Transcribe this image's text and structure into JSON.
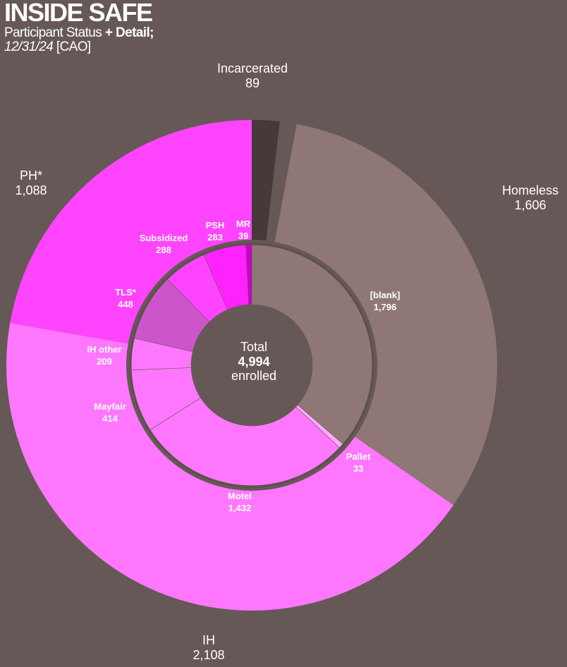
{
  "header": {
    "title": "INSIDE SAFE",
    "subtitle_plain": "Participant Status",
    "subtitle_bold": "+ Detail;",
    "date": "12/31/24",
    "source": "[CAO]"
  },
  "chart_data": {
    "type": "pie",
    "subtype": "nested-donut",
    "total_label": "Total",
    "total_value": "4,994",
    "total_unit": "enrolled",
    "outer": [
      {
        "label": "Incarcerated",
        "value": 89,
        "display": "89",
        "color": "#46393a"
      },
      {
        "label": "Homeless",
        "value": 1606,
        "display": "1,606",
        "color": "#8f7776"
      },
      {
        "label": "IH",
        "value": 2108,
        "display": "2,108",
        "color": "#ff77ff"
      },
      {
        "label": "PH*",
        "value": 1088,
        "display": "1,088",
        "color": "#ff44ff"
      }
    ],
    "inner": [
      {
        "label": "[blank]",
        "value": 1796,
        "display": "1,796",
        "color": "#8f7776"
      },
      {
        "label": "Pallet",
        "value": 33,
        "display": "33",
        "color": "#ffaaff"
      },
      {
        "label": "Motel",
        "value": 1432,
        "display": "1,432",
        "color": "#ff77ff"
      },
      {
        "label": "Mayfair",
        "value": 414,
        "display": "414",
        "color": "#ff77ff"
      },
      {
        "label": "IH other",
        "value": 209,
        "display": "209",
        "color": "#ff77ff"
      },
      {
        "label": "TLS*",
        "value": 448,
        "display": "448",
        "color": "#cc55cc"
      },
      {
        "label": "Subsidized",
        "value": 288,
        "display": "288",
        "color": "#ff44ff"
      },
      {
        "label": "PSH",
        "value": 283,
        "display": "283",
        "color": "#ff22ff"
      },
      {
        "label": "MR",
        "value": 39,
        "display": "39",
        "color": "#cc00cc"
      }
    ]
  }
}
